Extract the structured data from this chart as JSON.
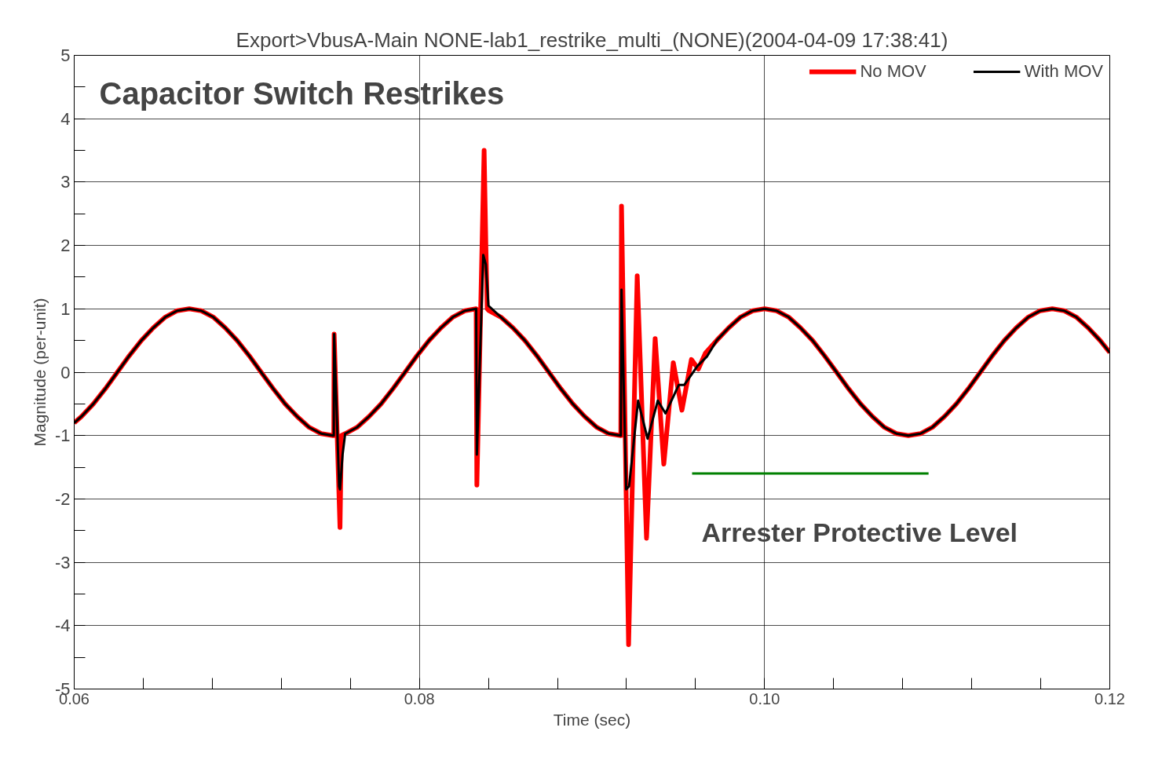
{
  "chart_data": {
    "type": "line",
    "title": "Export>VbusA-Main NONE-lab1_restrike_multi_(NONE)(2004-04-09 17:38:41)",
    "subtitle": "Capacitor Switch Restrikes",
    "xlabel": "Time (sec)",
    "ylabel": "Magnitude (per-unit)",
    "xlim": [
      0.06,
      0.12
    ],
    "ylim": [
      -5,
      5
    ],
    "xticks": [
      {
        "value": 0.06,
        "label": "0.06"
      },
      {
        "value": 0.08,
        "label": "0.08"
      },
      {
        "value": 0.1,
        "label": "0.10"
      },
      {
        "value": 0.12,
        "label": "0.12"
      }
    ],
    "yticks": [
      -5,
      -4,
      -3,
      -2,
      -1,
      0,
      1,
      2,
      3,
      4,
      5
    ],
    "grid": true,
    "legend": "top",
    "line_style": "solid",
    "annotations": [
      "Arrester Protective Level"
    ],
    "series": [
      {
        "name": "No MOV",
        "color": "#ff0000",
        "x": [
          0.06,
          0.06042,
          0.06111,
          0.06181,
          0.0625,
          0.06319,
          0.06389,
          0.06458,
          0.06528,
          0.06597,
          0.06667,
          0.06736,
          0.06806,
          0.06875,
          0.06944,
          0.07014,
          0.07083,
          0.07153,
          0.07222,
          0.07292,
          0.07361,
          0.07431,
          0.075,
          0.07504,
          0.07506,
          0.0754,
          0.07548,
          0.0757,
          0.07639,
          0.07708,
          0.07778,
          0.07847,
          0.07917,
          0.07986,
          0.08056,
          0.08125,
          0.08194,
          0.08264,
          0.08329,
          0.08333,
          0.08375,
          0.08385,
          0.08393,
          0.08403,
          0.08472,
          0.08542,
          0.08611,
          0.08681,
          0.0875,
          0.08819,
          0.08889,
          0.08958,
          0.09028,
          0.09097,
          0.09167,
          0.09171,
          0.09212,
          0.09262,
          0.09316,
          0.09366,
          0.09416,
          0.09471,
          0.09521,
          0.09576,
          0.09616,
          0.09657,
          0.09722,
          0.09792,
          0.09861,
          0.09931,
          0.1,
          0.10069,
          0.10139,
          0.10208,
          0.10278,
          0.10347,
          0.10417,
          0.10486,
          0.10556,
          0.10625,
          0.10694,
          0.10764,
          0.10833,
          0.10903,
          0.10972,
          0.11042,
          0.11111,
          0.11181,
          0.1125,
          0.11319,
          0.11389,
          0.11458,
          0.11528,
          0.11597,
          0.11667,
          0.11736,
          0.11806,
          0.11875,
          0.11944,
          0.12
        ],
        "values": [
          -0.8,
          -0.7,
          -0.5,
          -0.26,
          0,
          0.26,
          0.5,
          0.7,
          0.87,
          0.97,
          1,
          0.97,
          0.87,
          0.7,
          0.5,
          0.26,
          0,
          -0.26,
          -0.5,
          -0.7,
          -0.87,
          -0.97,
          -1,
          -1,
          0.6,
          -2.45,
          -1.0,
          -0.97,
          -0.87,
          -0.7,
          -0.5,
          -0.26,
          0,
          0.26,
          0.5,
          0.7,
          0.87,
          0.97,
          1,
          -1.78,
          3.5,
          2.0,
          1.0,
          0.97,
          0.87,
          0.7,
          0.5,
          0.26,
          0,
          -0.26,
          -0.5,
          -0.7,
          -0.87,
          -0.97,
          -1,
          2.62,
          -4.3,
          1.52,
          -2.62,
          0.53,
          -1.45,
          0.15,
          -0.6,
          0.2,
          0.05,
          0.3,
          0.5,
          0.7,
          0.87,
          0.97,
          1,
          0.97,
          0.87,
          0.7,
          0.5,
          0.26,
          0,
          -0.26,
          -0.5,
          -0.7,
          -0.87,
          -0.97,
          -1,
          -0.97,
          -0.87,
          -0.7,
          -0.5,
          -0.26,
          0,
          0.26,
          0.5,
          0.7,
          0.87,
          0.97,
          1,
          0.97,
          0.87,
          0.7,
          0.5,
          0.31
        ]
      },
      {
        "name": "With MOV",
        "color": "#000000",
        "x": [
          0.06,
          0.06042,
          0.06111,
          0.06181,
          0.0625,
          0.06319,
          0.06389,
          0.06458,
          0.06528,
          0.06597,
          0.06667,
          0.06736,
          0.06806,
          0.06875,
          0.06944,
          0.07014,
          0.07083,
          0.07153,
          0.07222,
          0.07292,
          0.07361,
          0.07431,
          0.075,
          0.07504,
          0.07506,
          0.07535,
          0.0754,
          0.07555,
          0.0757,
          0.07639,
          0.07708,
          0.07778,
          0.07847,
          0.07917,
          0.07986,
          0.08056,
          0.08125,
          0.08194,
          0.08264,
          0.08329,
          0.08333,
          0.0837,
          0.08385,
          0.084,
          0.08472,
          0.08542,
          0.08611,
          0.08681,
          0.0875,
          0.08819,
          0.08889,
          0.08958,
          0.09028,
          0.09097,
          0.09167,
          0.09171,
          0.09198,
          0.09215,
          0.09267,
          0.09322,
          0.09381,
          0.09426,
          0.09503,
          0.09535,
          0.09612,
          0.09667,
          0.09722,
          0.09792,
          0.09861,
          0.09931,
          0.1,
          0.10069,
          0.10139,
          0.10208,
          0.10278,
          0.10347,
          0.10417,
          0.10486,
          0.10556,
          0.10625,
          0.10694,
          0.10764,
          0.10833,
          0.10903,
          0.10972,
          0.11042,
          0.11111,
          0.11181,
          0.1125,
          0.11319,
          0.11389,
          0.11458,
          0.11528,
          0.11597,
          0.11667,
          0.11736,
          0.11806,
          0.11875,
          0.11944,
          0.12
        ],
        "values": [
          -0.8,
          -0.7,
          -0.5,
          -0.26,
          0,
          0.26,
          0.5,
          0.7,
          0.87,
          0.97,
          1,
          0.97,
          0.87,
          0.7,
          0.5,
          0.26,
          0,
          -0.26,
          -0.5,
          -0.7,
          -0.87,
          -0.97,
          -1,
          -1,
          0.6,
          -1.8,
          -1.85,
          -1.3,
          -0.97,
          -0.87,
          -0.7,
          -0.5,
          -0.26,
          0,
          0.26,
          0.5,
          0.7,
          0.87,
          0.97,
          1,
          -1.3,
          1.85,
          1.7,
          1.05,
          0.87,
          0.7,
          0.5,
          0.26,
          0,
          -0.26,
          -0.5,
          -0.7,
          -0.87,
          -0.97,
          -1,
          1.3,
          -1.85,
          -1.8,
          -0.45,
          -1.05,
          -0.45,
          -0.65,
          -0.2,
          -0.2,
          0.1,
          0.25,
          0.5,
          0.7,
          0.87,
          0.97,
          1,
          0.97,
          0.87,
          0.7,
          0.5,
          0.26,
          0,
          -0.26,
          -0.5,
          -0.7,
          -0.87,
          -0.97,
          -1,
          -0.97,
          -0.87,
          -0.7,
          -0.5,
          -0.26,
          0,
          0.26,
          0.5,
          0.7,
          0.87,
          0.97,
          1,
          0.97,
          0.87,
          0.7,
          0.5,
          0.31
        ]
      },
      {
        "color": "#008000",
        "x": [
          0.0958,
          0.1095
        ],
        "values": [
          -1.6,
          -1.6
        ]
      }
    ]
  }
}
